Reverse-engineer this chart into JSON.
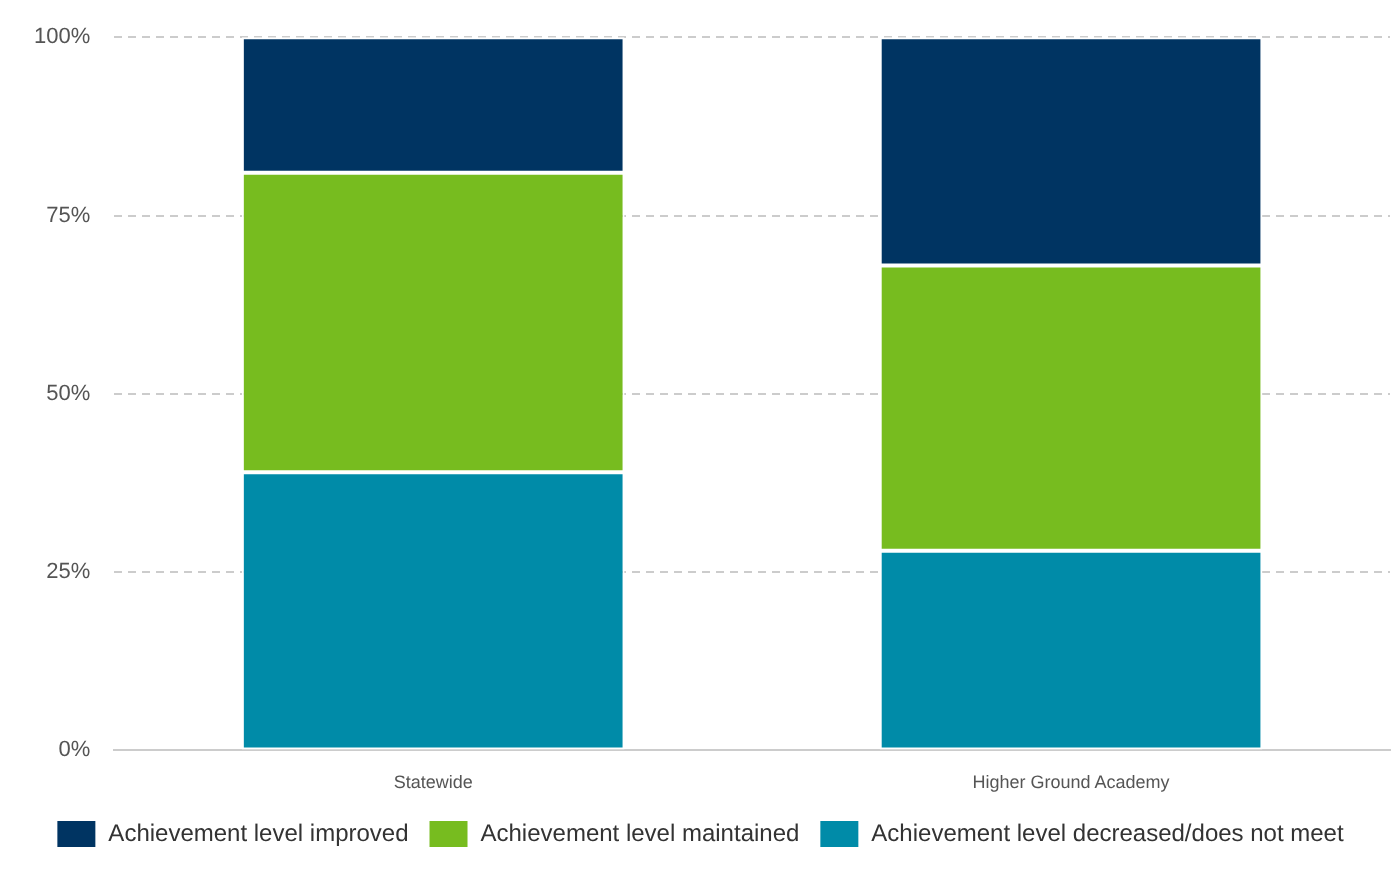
{
  "chart_data": {
    "type": "bar",
    "stacked": true,
    "categories": [
      "Statewide",
      "Higher Ground Academy"
    ],
    "series": [
      {
        "name": "Achievement level decreased/does not meet",
        "color": "#008ba8",
        "values": [
          39,
          28
        ]
      },
      {
        "name": "Achievement level maintained",
        "color": "#77bc1f",
        "values": [
          42,
          40
        ]
      },
      {
        "name": "Achievement level improved",
        "color": "#003462",
        "values": [
          19,
          32
        ]
      }
    ],
    "ylim": [
      0,
      100
    ],
    "yticks": [
      {
        "value": 0,
        "label": "0%"
      },
      {
        "value": 25,
        "label": "25%"
      },
      {
        "value": 50,
        "label": "50%"
      },
      {
        "value": 75,
        "label": "75%"
      },
      {
        "value": 100,
        "label": "100%"
      }
    ],
    "grid": "y",
    "legend": "bottom"
  }
}
